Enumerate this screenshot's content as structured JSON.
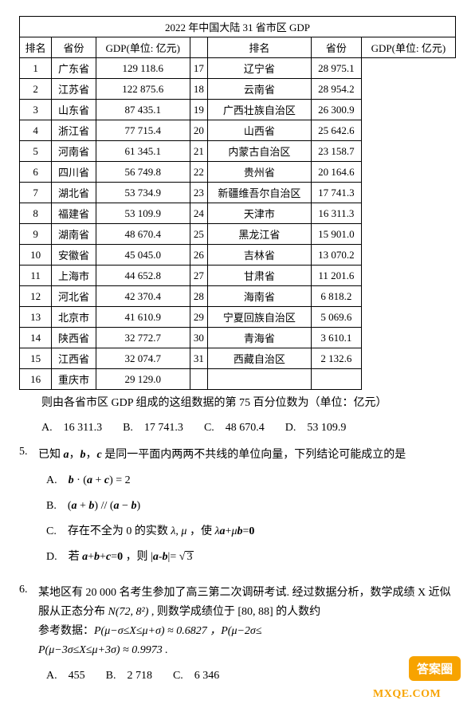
{
  "table": {
    "title": "2022 年中国大陆 31 省市区 GDP",
    "headers": {
      "rank": "排名",
      "province": "省份",
      "gdp": "GDP(单位: 亿元)"
    },
    "left": [
      {
        "rank": "1",
        "province": "广东省",
        "gdp": "129 118.6"
      },
      {
        "rank": "2",
        "province": "江苏省",
        "gdp": "122 875.6"
      },
      {
        "rank": "3",
        "province": "山东省",
        "gdp": "87 435.1"
      },
      {
        "rank": "4",
        "province": "浙江省",
        "gdp": "77 715.4"
      },
      {
        "rank": "5",
        "province": "河南省",
        "gdp": "61 345.1"
      },
      {
        "rank": "6",
        "province": "四川省",
        "gdp": "56 749.8"
      },
      {
        "rank": "7",
        "province": "湖北省",
        "gdp": "53 734.9"
      },
      {
        "rank": "8",
        "province": "福建省",
        "gdp": "53 109.9"
      },
      {
        "rank": "9",
        "province": "湖南省",
        "gdp": "48 670.4"
      },
      {
        "rank": "10",
        "province": "安徽省",
        "gdp": "45 045.0"
      },
      {
        "rank": "11",
        "province": "上海市",
        "gdp": "44 652.8"
      },
      {
        "rank": "12",
        "province": "河北省",
        "gdp": "42 370.4"
      },
      {
        "rank": "13",
        "province": "北京市",
        "gdp": "41 610.9"
      },
      {
        "rank": "14",
        "province": "陕西省",
        "gdp": "32 772.7"
      },
      {
        "rank": "15",
        "province": "江西省",
        "gdp": "32 074.7"
      },
      {
        "rank": "16",
        "province": "重庆市",
        "gdp": "29 129.0"
      }
    ],
    "right": [
      {
        "rank": "17",
        "province": "辽宁省",
        "gdp": "28 975.1"
      },
      {
        "rank": "18",
        "province": "云南省",
        "gdp": "28 954.2"
      },
      {
        "rank": "19",
        "province": "广西壮族自治区",
        "gdp": "26 300.9"
      },
      {
        "rank": "20",
        "province": "山西省",
        "gdp": "25 642.6"
      },
      {
        "rank": "21",
        "province": "内蒙古自治区",
        "gdp": "23 158.7"
      },
      {
        "rank": "22",
        "province": "贵州省",
        "gdp": "20 164.6"
      },
      {
        "rank": "23",
        "province": "新疆维吾尔自治区",
        "gdp": "17 741.3"
      },
      {
        "rank": "24",
        "province": "天津市",
        "gdp": "16 311.3"
      },
      {
        "rank": "25",
        "province": "黑龙江省",
        "gdp": "15 901.0"
      },
      {
        "rank": "26",
        "province": "吉林省",
        "gdp": "13 070.2"
      },
      {
        "rank": "27",
        "province": "甘肃省",
        "gdp": "11 201.6"
      },
      {
        "rank": "28",
        "province": "海南省",
        "gdp": "6 818.2"
      },
      {
        "rank": "29",
        "province": "宁夏回族自治区",
        "gdp": "5 069.6"
      },
      {
        "rank": "30",
        "province": "青海省",
        "gdp": "3 610.1"
      },
      {
        "rank": "31",
        "province": "西藏自治区",
        "gdp": "2 132.6"
      }
    ]
  },
  "q4": {
    "stem": "则由各省市区 GDP 组成的这组数据的第 75 百分位数为（单位：亿元）",
    "A": "A.　16 311.3",
    "B": "B.　17 741.3",
    "C": "C.　48 670.4",
    "D": "D.　53 109.9"
  },
  "q5": {
    "num": "5.",
    "stem_pre": "已知 ",
    "stem_post": " 是同一平面内两两不共线的单位向量，下列结论可能成立的是",
    "A": {
      "label": "A.　",
      "expr_l": "b",
      "dot": " · (",
      "a": "a",
      "plus": " + ",
      "c": "c",
      "close": ") = 2"
    },
    "B": {
      "label": "B.　",
      "l1": "(",
      "a1": "a",
      "p1": " + ",
      "b1": "b",
      "r1": ") // (",
      "a2": "a",
      "m1": " − ",
      "b2": "b",
      "r2": ")"
    },
    "C": {
      "label": "C.　",
      "pre": "存在不全为 0 的实数 ",
      "lam": "λ",
      "comma": ", ",
      "mu": "μ",
      "mid": " ，使 ",
      "lam2": "λ",
      "a": "a",
      "plus": "+",
      "mu2": "μ",
      "b": "b",
      "eq": "=",
      "zero": "0"
    },
    "D": {
      "label": "D.　",
      "pre": "若 ",
      "a": "a",
      "p1": "+",
      "b": "b",
      "p2": "+",
      "c": "c",
      "eq0": "=",
      "zero": "0",
      "mid": " ，则 |",
      "a2": "a",
      "minus": "-",
      "b2": "b",
      "close": "|= ",
      "root": "√",
      "three": "3"
    }
  },
  "q6": {
    "num": "6.",
    "line1": "某地区有 20 000 名考生参加了高三第二次调研考试. 经过数据分析，数学成绩 X 近似",
    "line2_pre": "服从正态分布 ",
    "dist": "N(72, 8²)",
    "line2_post": " , 则数学成绩位于 [80, 88] 的人数约",
    "ref_label": "参考数据：",
    "ref1": "P(μ−σ≤X≤μ+σ) ≈ 0.6827 ，P(μ−2σ≤",
    "ref2": "P(μ−3σ≤X≤μ+3σ) ≈ 0.9973 .",
    "A": "A.　455",
    "B": "B.　2 718",
    "C": "C.　6 346"
  },
  "watermark": {
    "bubble": "答案圈",
    "url": "MXQE.COM"
  }
}
